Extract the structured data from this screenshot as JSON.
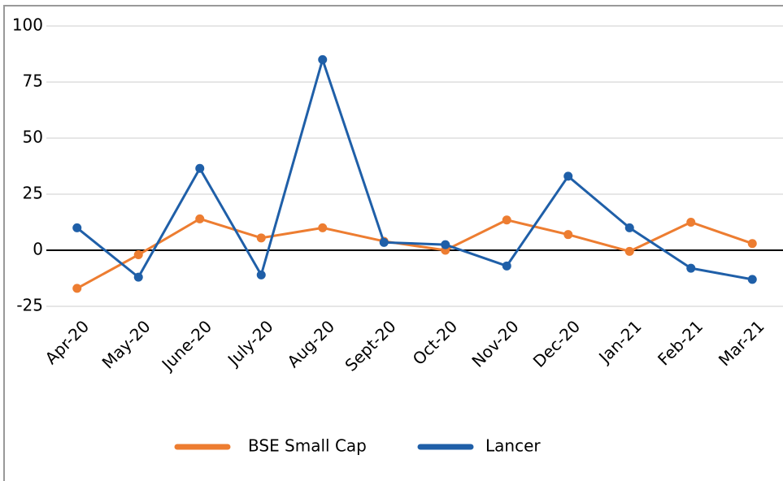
{
  "chart_data": {
    "type": "line",
    "categories": [
      "Apr-20",
      "May-20",
      "June-20",
      "July-20",
      "Aug-20",
      "Sept-20",
      "Oct-20",
      "Nov-20",
      "Dec-20",
      "Jan-21",
      "Feb-21",
      "Mar-21"
    ],
    "series": [
      {
        "name": "BSE Small Cap",
        "color": "#ed7d31",
        "values": [
          -17,
          -2,
          14,
          5.5,
          10,
          4,
          0,
          13.5,
          7,
          -0.5,
          12.5,
          3
        ]
      },
      {
        "name": "Lancer",
        "color": "#1f5fa8",
        "values": [
          10,
          -12,
          36.5,
          -11,
          85,
          3.5,
          2.5,
          -7,
          33,
          10,
          -8,
          -13
        ]
      }
    ],
    "ylim": [
      -25,
      100
    ],
    "yticks": [
      -25,
      0,
      25,
      50,
      75,
      100
    ],
    "grid": true,
    "legend": "bottom"
  }
}
